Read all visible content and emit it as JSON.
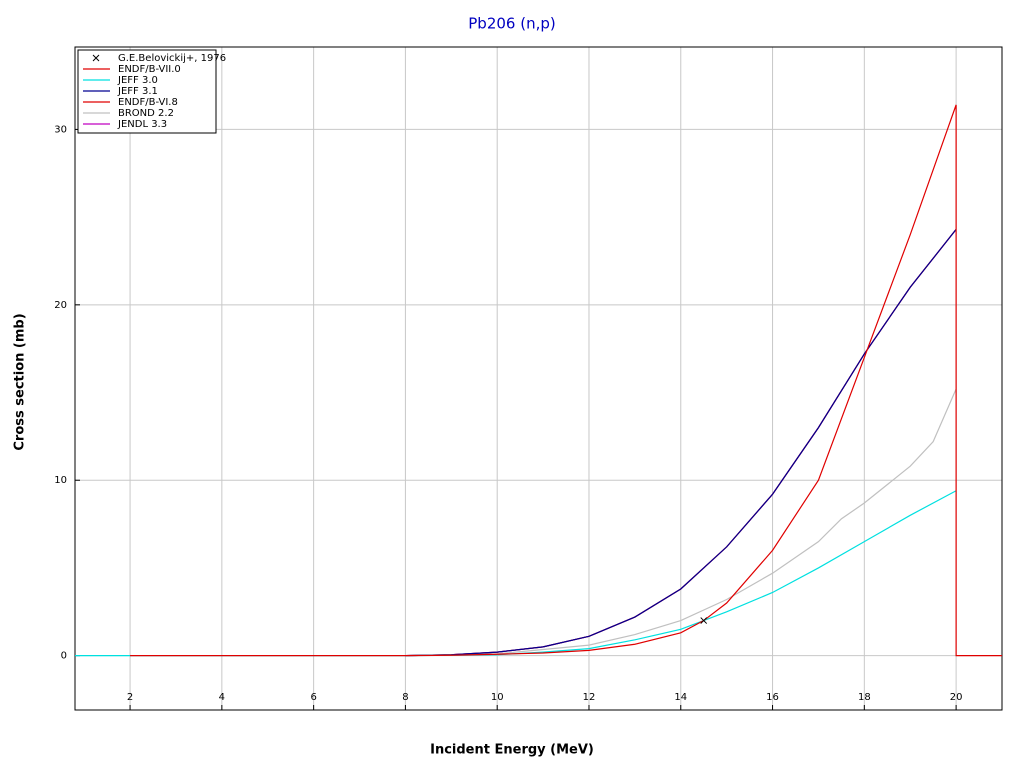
{
  "chart_data": {
    "type": "line",
    "title": "Pb206 (n,p)",
    "x_label": "Incident Energy (MeV)",
    "y_label": "Cross section (mb)",
    "xlim": [
      0.8,
      21
    ],
    "ylim": [
      -3.1,
      34.7
    ],
    "xticks": [
      2,
      4,
      6,
      8,
      10,
      12,
      14,
      16,
      18,
      20
    ],
    "yticks": [
      0,
      10,
      20,
      30
    ],
    "grid": true,
    "legend": "upper left",
    "series": [
      {
        "name": "G.E.Belovickij+, 1976",
        "type": "scatter",
        "color": "#000000",
        "x": [
          14.5
        ],
        "values": [
          2.0
        ]
      },
      {
        "name": "ENDF/B-VII.0",
        "color": "#e00000",
        "x": [
          2,
          8,
          9,
          10,
          11,
          12,
          13,
          14,
          14.5,
          15,
          16,
          17,
          18,
          19,
          20,
          20,
          21
        ],
        "values": [
          0,
          0,
          0.02,
          0.08,
          0.15,
          0.3,
          0.65,
          1.3,
          2.0,
          3.0,
          6.0,
          10.0,
          17.0,
          24.0,
          31.4,
          0,
          0
        ]
      },
      {
        "name": "JEFF 3.0",
        "color": "#00e0e0",
        "x": [
          0.8,
          2,
          8,
          10,
          11,
          12,
          13,
          14,
          15,
          16,
          17,
          18,
          19,
          20
        ],
        "values": [
          0,
          0,
          0,
          0.05,
          0.2,
          0.4,
          0.9,
          1.5,
          2.5,
          3.6,
          5.0,
          6.5,
          8.0,
          9.4
        ]
      },
      {
        "name": "JEFF 3.1",
        "color": "#000090",
        "x": [
          8,
          9,
          10,
          11,
          12,
          13,
          14,
          15,
          16,
          17,
          18,
          19,
          20
        ],
        "values": [
          0,
          0.05,
          0.2,
          0.5,
          1.1,
          2.2,
          3.8,
          6.2,
          9.2,
          13.0,
          17.2,
          21.0,
          24.3
        ]
      },
      {
        "name": "ENDF/B-VI.8",
        "color": "#e00000",
        "x": [
          8,
          9,
          10,
          11,
          12,
          13,
          14,
          15,
          16,
          17,
          18,
          19,
          20
        ],
        "values": [
          0,
          0.05,
          0.2,
          0.5,
          1.1,
          2.2,
          3.8,
          6.2,
          9.2,
          13.0,
          17.2,
          21.0,
          24.3
        ]
      },
      {
        "name": "BROND 2.2",
        "color": "#c0c0c0",
        "x": [
          8,
          10,
          12,
          13,
          14,
          15,
          16,
          17,
          17.5,
          18,
          19,
          19.5,
          20
        ],
        "values": [
          0,
          0.1,
          0.6,
          1.2,
          2.0,
          3.2,
          4.7,
          6.5,
          7.8,
          8.7,
          10.8,
          12.2,
          15.2
        ]
      },
      {
        "name": "JENDL 3.3",
        "color": "#c000c0",
        "x": [
          8,
          9,
          10,
          11,
          12,
          13,
          14,
          15,
          16,
          17,
          18,
          19,
          20
        ],
        "values": [
          0,
          0.05,
          0.2,
          0.5,
          1.1,
          2.2,
          3.8,
          6.2,
          9.2,
          13.0,
          17.2,
          21.0,
          24.3
        ]
      }
    ]
  }
}
